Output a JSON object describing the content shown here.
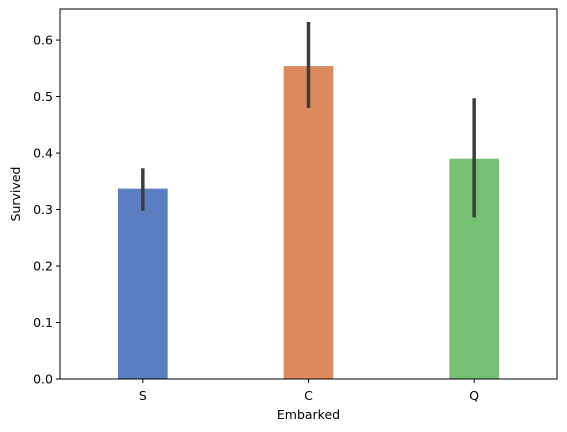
{
  "chart_data": {
    "type": "bar",
    "categories": [
      "S",
      "C",
      "Q"
    ],
    "values": [
      0.337,
      0.554,
      0.39
    ],
    "error_bars": [
      [
        0.298,
        0.373
      ],
      [
        0.48,
        0.632
      ],
      [
        0.286,
        0.497
      ]
    ],
    "colors": [
      "#5b7dc2",
      "#db8b5d",
      "#75c072"
    ],
    "error_color": "#3d3d3d",
    "xlabel": "Embarked",
    "ylabel": "Survived",
    "ylim": [
      0,
      0.655
    ],
    "yticks": [
      0.0,
      0.1,
      0.2,
      0.3,
      0.4,
      0.5,
      0.6
    ],
    "ytick_labels": [
      "0.0",
      "0.1",
      "0.2",
      "0.3",
      "0.4",
      "0.5",
      "0.6"
    ],
    "grid": false,
    "legend": "none"
  }
}
